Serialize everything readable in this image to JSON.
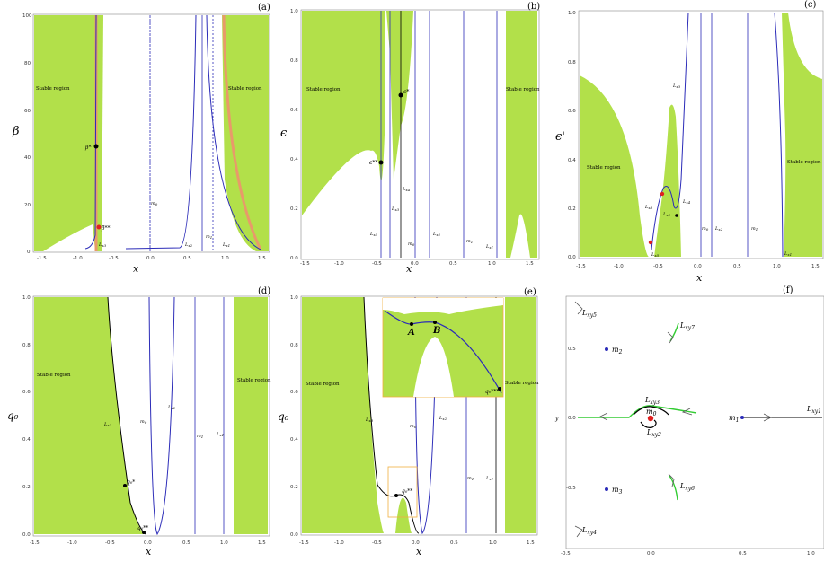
{
  "region_text": "Stable region",
  "colors": {
    "stable": "#b2e04a",
    "curve": "#2b2bb8",
    "black": "#000000",
    "orange": "#e89a6a",
    "red": "#e02020",
    "green": "#33cc33"
  },
  "panels": {
    "a": {
      "label": "(a)",
      "xlabel": "x",
      "ylabel": "β",
      "xticks": [
        "-1.5",
        "-1.0",
        "-0.5",
        "0.0",
        "0.5",
        "1.0",
        "1.5"
      ],
      "yticks": [
        "100",
        "80",
        "60",
        "40",
        "20",
        "0"
      ],
      "curve_labels": {
        "lx3": "L",
        "lx3s": "x3",
        "m0": "m₀",
        "m0n": "m",
        "lx2": "L",
        "lx1": "L"
      },
      "point_labels": {
        "beta_star": "β*",
        "beta_2star": "β**"
      }
    },
    "b": {
      "label": "(b)",
      "xlabel": "x",
      "ylabel": "ϵ",
      "xticks": [
        "-1.5",
        "-1.0",
        "-0.5",
        "0.0",
        "0.5",
        "1.0",
        "1.5"
      ],
      "yticks": [
        "1.0",
        "0.8",
        "0.6",
        "0.4",
        "0.2",
        "0.0"
      ],
      "point_labels": {
        "eps_star": "ϵ*",
        "eps_2star": "ϵ**"
      }
    },
    "c": {
      "label": "(c)",
      "xlabel": "x",
      "ylabel": "ϵ'",
      "xticks": [
        "-1.5",
        "-1.0",
        "-0.5",
        "0.0",
        "0.5",
        "1.0",
        "1.5"
      ],
      "yticks": [
        "1.0",
        "0.8",
        "0.6",
        "0.4",
        "0.2",
        "0.0"
      ]
    },
    "d": {
      "label": "(d)",
      "xlabel": "x",
      "ylabel": "q₀",
      "xticks": [
        "-1.5",
        "-1.0",
        "-0.5",
        "0.0",
        "0.5",
        "1.0",
        "1.5"
      ],
      "yticks": [
        "1.0",
        "0.8",
        "0.6",
        "0.4",
        "0.2",
        "0.0"
      ],
      "point_labels": {
        "q0_star": "q₀*",
        "q0_2star": "q₀**"
      }
    },
    "e": {
      "label": "(e)",
      "xlabel": "x",
      "ylabel": "q₀",
      "xticks": [
        "-1.5",
        "-1.0",
        "-0.5",
        "0.0",
        "0.5",
        "1.0",
        "1.5"
      ],
      "yticks": [
        "1.0",
        "0.8",
        "0.6",
        "0.4",
        "0.2",
        "0.0"
      ],
      "point_labels": {
        "A": "A",
        "B": "B",
        "q0_3star": "q₀***",
        "q0_2star": "q₀**"
      }
    },
    "f": {
      "label": "(f)",
      "ylabel": "y",
      "xticks": [
        "-0.5",
        "0.0",
        "0.5",
        "1.0"
      ],
      "yticks": [
        "0.5",
        "0.0",
        "-0.5"
      ],
      "labels": {
        "lxy1": "L",
        "lxy1s": "xy1",
        "lxy2": "L",
        "lxy3": "L",
        "lxy4": "L",
        "lxy5": "L",
        "lxy6": "L",
        "lxy7": "L",
        "m0": "m",
        "m1": "m",
        "m2": "m",
        "m3": "m"
      }
    }
  }
}
